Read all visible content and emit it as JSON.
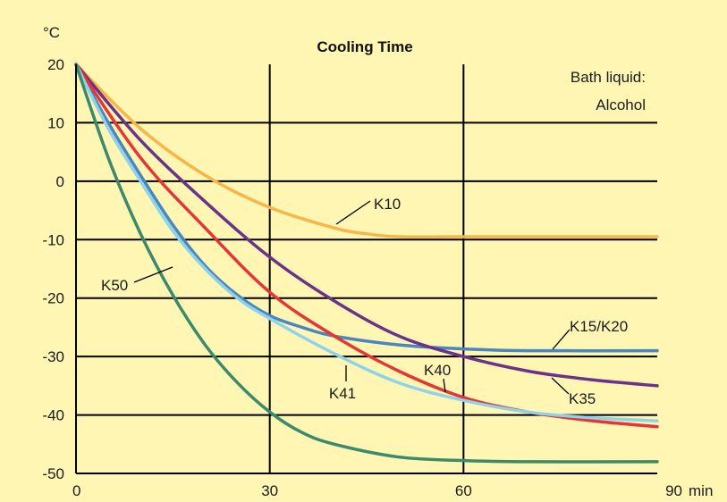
{
  "chart_data": {
    "type": "line",
    "title": "Cooling Time",
    "ylabel": "°C",
    "xlabel": "",
    "x_unit": "min",
    "xlim": [
      0,
      90
    ],
    "ylim": [
      -50,
      20
    ],
    "x_ticks": [
      0,
      30,
      60,
      90
    ],
    "y_ticks": [
      20,
      10,
      0,
      -10,
      -20,
      -30,
      -40,
      -50
    ],
    "grid": true,
    "background": "#fff6b3",
    "note_lines": [
      "Bath liquid:",
      "Alcohol"
    ],
    "series": [
      {
        "name": "K10",
        "color": "#f7b648",
        "x": [
          0,
          10,
          20,
          30,
          40,
          45,
          50,
          60,
          70,
          90
        ],
        "y": [
          20,
          9,
          1,
          -4.5,
          -8,
          -9,
          -9.5,
          -9.5,
          -9.5,
          -9.5
        ]
      },
      {
        "name": "K15/K20",
        "color": "#4a86c0",
        "x": [
          0,
          5,
          10,
          15,
          20,
          25,
          30,
          35,
          40,
          50,
          60,
          70,
          90
        ],
        "y": [
          20,
          10,
          1,
          -7.5,
          -14.5,
          -19.5,
          -23,
          -25,
          -26.5,
          -28,
          -28.7,
          -29,
          -29
        ]
      },
      {
        "name": "K35",
        "color": "#6b3289",
        "x": [
          0,
          10,
          20,
          30,
          40,
          50,
          60,
          70,
          80,
          90
        ],
        "y": [
          20,
          7,
          -3.5,
          -13,
          -20.5,
          -26.5,
          -30,
          -32.5,
          -34,
          -35
        ]
      },
      {
        "name": "K40",
        "color": "#e53535",
        "x": [
          0,
          10,
          20,
          30,
          40,
          50,
          60,
          70,
          80,
          90
        ],
        "y": [
          20,
          4,
          -8,
          -19,
          -26.5,
          -32.5,
          -37,
          -39.5,
          -41,
          -42
        ]
      },
      {
        "name": "K41",
        "color": "#8ed3eb",
        "x": [
          0,
          5,
          10,
          15,
          20,
          25,
          30,
          40,
          50,
          60,
          70,
          80,
          90
        ],
        "y": [
          20,
          9,
          0,
          -8.5,
          -15,
          -20,
          -23.5,
          -29.5,
          -34.5,
          -37.5,
          -39.5,
          -40.5,
          -41
        ]
      },
      {
        "name": "K50",
        "color": "#3a8a6b",
        "x": [
          0,
          5,
          10,
          15,
          20,
          25,
          30,
          35,
          40,
          50,
          60,
          70,
          90
        ],
        "y": [
          20,
          4,
          -9,
          -19.5,
          -28,
          -34.5,
          -39.5,
          -43,
          -45,
          -47.2,
          -47.8,
          -48,
          -48
        ]
      }
    ],
    "annotations": [
      {
        "text": "K10",
        "series": "K10"
      },
      {
        "text": "K15/K20",
        "series": "K15/K20"
      },
      {
        "text": "K35",
        "series": "K35"
      },
      {
        "text": "K40",
        "series": "K40"
      },
      {
        "text": "K41",
        "series": "K41"
      },
      {
        "text": "K50",
        "series": "K50"
      }
    ]
  }
}
